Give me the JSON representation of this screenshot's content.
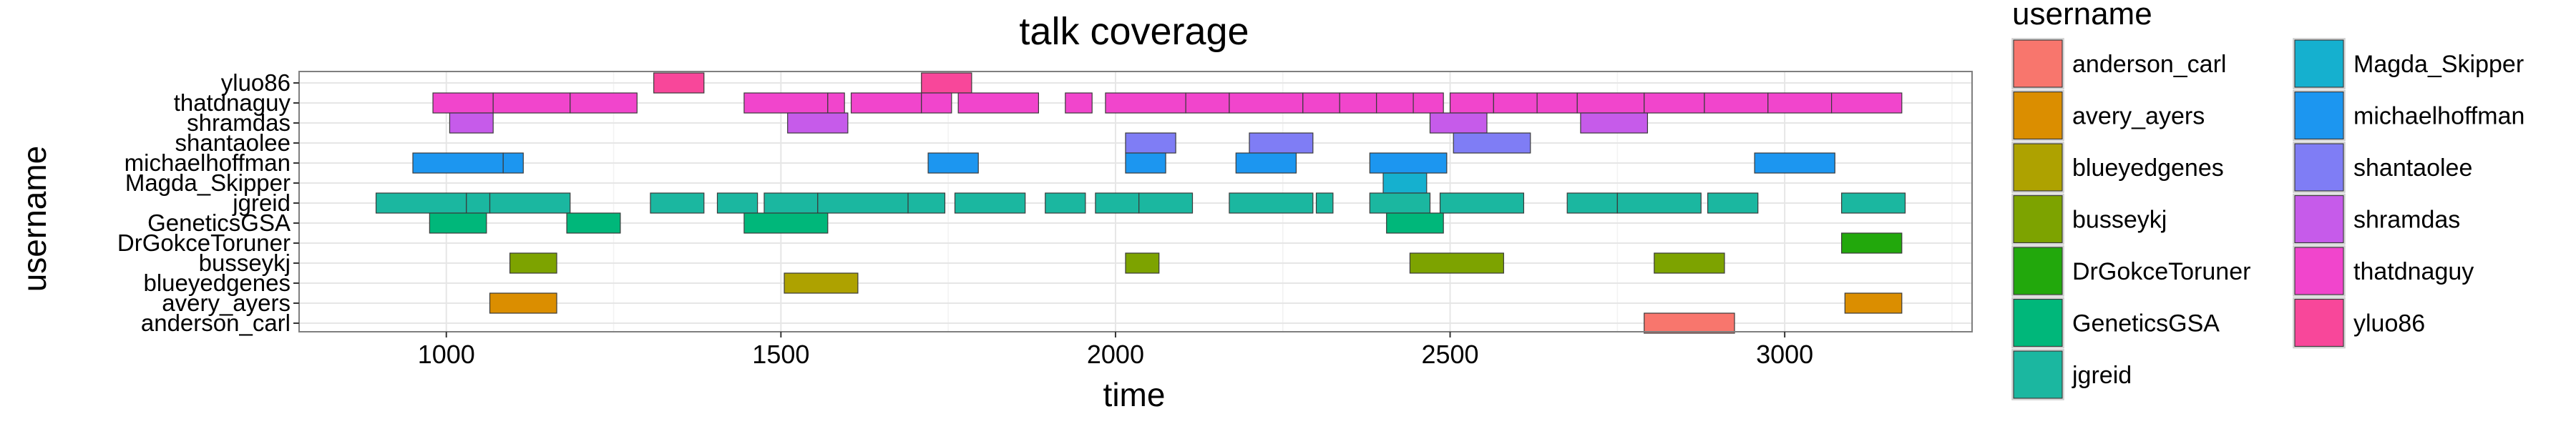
{
  "chart_data": {
    "type": "gantt",
    "title": "talk coverage",
    "xlabel": "time",
    "ylabel": "username",
    "xlim": [
      780,
      3280
    ],
    "xticks": [
      1000,
      1500,
      2000,
      2500,
      3000
    ],
    "grid": true,
    "legend_position": "right",
    "legend_title": "username",
    "users": [
      {
        "name": "anderson_carl",
        "color": "#F8766D"
      },
      {
        "name": "avery_ayers",
        "color": "#DB8E00"
      },
      {
        "name": "blueyedgenes",
        "color": "#AEA200"
      },
      {
        "name": "busseykj",
        "color": "#64B200"
      },
      {
        "name": "DrGokceToruner",
        "color": "#00BD5C"
      },
      {
        "name": "GeneticsGSA",
        "color": "#00C1A7"
      },
      {
        "name": "jgreid",
        "color": "#00BADE"
      },
      {
        "name": "Magda_Skipper",
        "color": "#00A6FF"
      },
      {
        "name": "michaelhoffman",
        "color": "#B385FF"
      },
      {
        "name": "shantaolee",
        "color": "#EF67EB"
      },
      {
        "name": "shramdas",
        "color": "#FF63B6"
      },
      {
        "name": "thatdnaguy",
        "color": "#F8766D"
      },
      {
        "name": "yluo86",
        "color": "#DB8E00"
      }
    ],
    "y_order": [
      "yluo86",
      "thatdnaguy",
      "shramdas",
      "shantaolee",
      "michaelhoffman",
      "Magda_Skipper",
      "jgreid",
      "GeneticsGSA",
      "DrGokceToruner",
      "busseykj",
      "blueyedgenes",
      "avery_ayers",
      "anderson_carl"
    ],
    "segments": [
      {
        "user": "yluo86",
        "start": 1310,
        "end": 1385
      },
      {
        "user": "yluo86",
        "start": 1710,
        "end": 1785
      },
      {
        "user": "thatdnaguy",
        "start": 980,
        "end": 1070
      },
      {
        "user": "thatdnaguy",
        "start": 1070,
        "end": 1185
      },
      {
        "user": "thatdnaguy",
        "start": 1185,
        "end": 1285
      },
      {
        "user": "thatdnaguy",
        "start": 1445,
        "end": 1570
      },
      {
        "user": "thatdnaguy",
        "start": 1570,
        "end": 1595
      },
      {
        "user": "thatdnaguy",
        "start": 1605,
        "end": 1710
      },
      {
        "user": "thatdnaguy",
        "start": 1710,
        "end": 1755
      },
      {
        "user": "thatdnaguy",
        "start": 1765,
        "end": 1885
      },
      {
        "user": "thatdnaguy",
        "start": 1925,
        "end": 1965
      },
      {
        "user": "thatdnaguy",
        "start": 1985,
        "end": 2105
      },
      {
        "user": "thatdnaguy",
        "start": 2105,
        "end": 2170
      },
      {
        "user": "thatdnaguy",
        "start": 2170,
        "end": 2280
      },
      {
        "user": "thatdnaguy",
        "start": 2280,
        "end": 2335
      },
      {
        "user": "thatdnaguy",
        "start": 2335,
        "end": 2390
      },
      {
        "user": "thatdnaguy",
        "start": 2390,
        "end": 2445
      },
      {
        "user": "thatdnaguy",
        "start": 2445,
        "end": 2490
      },
      {
        "user": "thatdnaguy",
        "start": 2500,
        "end": 2565
      },
      {
        "user": "thatdnaguy",
        "start": 2565,
        "end": 2630
      },
      {
        "user": "thatdnaguy",
        "start": 2630,
        "end": 2690
      },
      {
        "user": "thatdnaguy",
        "start": 2690,
        "end": 2790
      },
      {
        "user": "thatdnaguy",
        "start": 2790,
        "end": 2880
      },
      {
        "user": "thatdnaguy",
        "start": 2880,
        "end": 2975
      },
      {
        "user": "thatdnaguy",
        "start": 2975,
        "end": 3070
      },
      {
        "user": "thatdnaguy",
        "start": 3070,
        "end": 3175
      },
      {
        "user": "shramdas",
        "start": 1005,
        "end": 1070
      },
      {
        "user": "shramdas",
        "start": 1510,
        "end": 1600
      },
      {
        "user": "shramdas",
        "start": 2470,
        "end": 2555
      },
      {
        "user": "shramdas",
        "start": 2695,
        "end": 2795
      },
      {
        "user": "shantaolee",
        "start": 2015,
        "end": 2090
      },
      {
        "user": "shantaolee",
        "start": 2200,
        "end": 2295
      },
      {
        "user": "shantaolee",
        "start": 2505,
        "end": 2620
      },
      {
        "user": "michaelhoffman",
        "start": 950,
        "end": 1085
      },
      {
        "user": "michaelhoffman",
        "start": 1085,
        "end": 1115
      },
      {
        "user": "michaelhoffman",
        "start": 1720,
        "end": 1795
      },
      {
        "user": "michaelhoffman",
        "start": 2015,
        "end": 2075
      },
      {
        "user": "michaelhoffman",
        "start": 2180,
        "end": 2270
      },
      {
        "user": "michaelhoffman",
        "start": 2380,
        "end": 2495
      },
      {
        "user": "michaelhoffman",
        "start": 2955,
        "end": 3075
      },
      {
        "user": "Magda_Skipper",
        "start": 2400,
        "end": 2465
      },
      {
        "user": "jgreid",
        "start": 895,
        "end": 1030
      },
      {
        "user": "jgreid",
        "start": 1030,
        "end": 1065
      },
      {
        "user": "jgreid",
        "start": 1065,
        "end": 1185
      },
      {
        "user": "jgreid",
        "start": 1305,
        "end": 1385
      },
      {
        "user": "jgreid",
        "start": 1405,
        "end": 1465
      },
      {
        "user": "jgreid",
        "start": 1475,
        "end": 1555
      },
      {
        "user": "jgreid",
        "start": 1555,
        "end": 1690
      },
      {
        "user": "jgreid",
        "start": 1690,
        "end": 1745
      },
      {
        "user": "jgreid",
        "start": 1760,
        "end": 1865
      },
      {
        "user": "jgreid",
        "start": 1895,
        "end": 1955
      },
      {
        "user": "jgreid",
        "start": 1970,
        "end": 2035
      },
      {
        "user": "jgreid",
        "start": 2035,
        "end": 2115
      },
      {
        "user": "jgreid",
        "start": 2170,
        "end": 2295
      },
      {
        "user": "jgreid",
        "start": 2300,
        "end": 2325
      },
      {
        "user": "jgreid",
        "start": 2380,
        "end": 2470
      },
      {
        "user": "jgreid",
        "start": 2485,
        "end": 2610
      },
      {
        "user": "jgreid",
        "start": 2675,
        "end": 2750
      },
      {
        "user": "jgreid",
        "start": 2750,
        "end": 2875
      },
      {
        "user": "jgreid",
        "start": 2885,
        "end": 2960
      },
      {
        "user": "jgreid",
        "start": 3085,
        "end": 3180
      },
      {
        "user": "GeneticsGSA",
        "start": 975,
        "end": 1060
      },
      {
        "user": "GeneticsGSA",
        "start": 1180,
        "end": 1260
      },
      {
        "user": "GeneticsGSA",
        "start": 1445,
        "end": 1570
      },
      {
        "user": "GeneticsGSA",
        "start": 2405,
        "end": 2490
      },
      {
        "user": "DrGokceToruner",
        "start": 3085,
        "end": 3175
      },
      {
        "user": "busseykj",
        "start": 1095,
        "end": 1165
      },
      {
        "user": "busseykj",
        "start": 2015,
        "end": 2065
      },
      {
        "user": "busseykj",
        "start": 2440,
        "end": 2580
      },
      {
        "user": "busseykj",
        "start": 2805,
        "end": 2910
      },
      {
        "user": "blueyedgenes",
        "start": 1505,
        "end": 1615
      },
      {
        "user": "avery_ayers",
        "start": 1065,
        "end": 1165
      },
      {
        "user": "avery_ayers",
        "start": 3090,
        "end": 3175
      },
      {
        "user": "anderson_carl",
        "start": 2790,
        "end": 2925
      }
    ]
  }
}
